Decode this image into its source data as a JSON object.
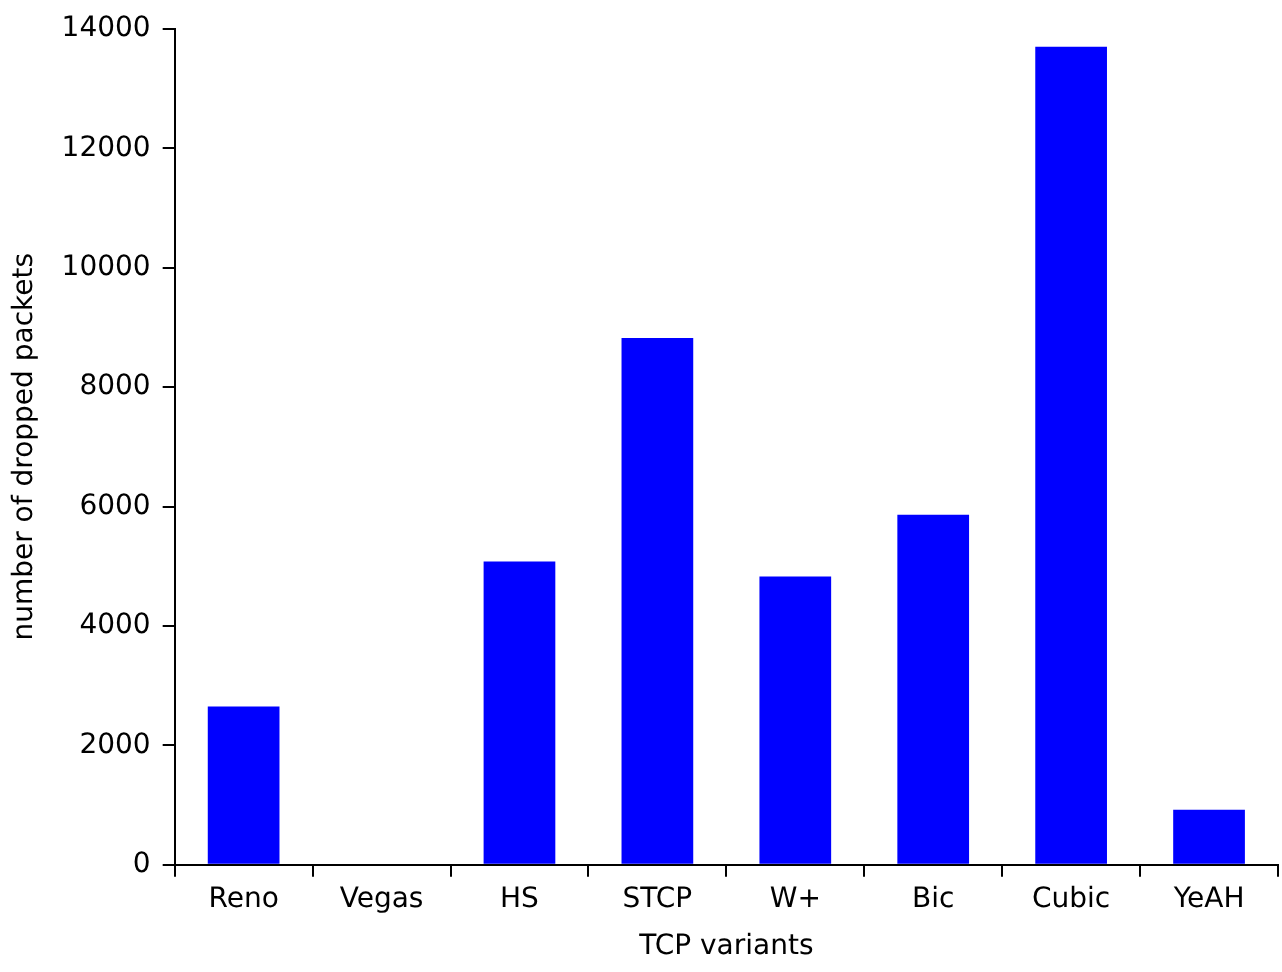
{
  "chart_data": {
    "type": "bar",
    "xlabel": "TCP variants",
    "ylabel": "number of dropped packets",
    "categories": [
      "Reno",
      "Vegas",
      "HS",
      "STCP",
      "W+",
      "Bic",
      "Cubic",
      "YeAH"
    ],
    "values": [
      2650,
      0,
      5080,
      8820,
      4830,
      5860,
      13700,
      920
    ],
    "color": "#0000ff",
    "ylim": [
      0,
      14000
    ],
    "yticks": [
      0,
      2000,
      4000,
      6000,
      8000,
      10000,
      12000,
      14000
    ],
    "grid": false,
    "legend": false
  }
}
